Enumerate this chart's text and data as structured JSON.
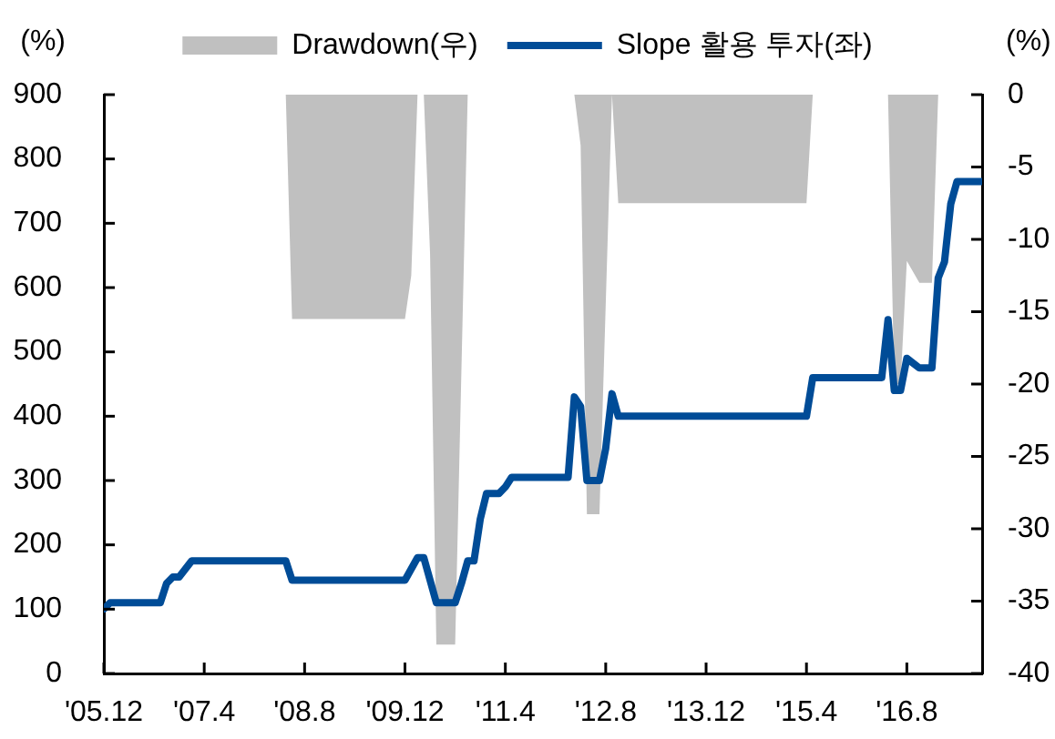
{
  "chart_data": {
    "type": "line",
    "ylabel": "(%)",
    "y2label": "(%)",
    "xlim": [
      "2005-12",
      "2017-08"
    ],
    "xticks": [
      {
        "value": "2005-12",
        "label": "'05.12"
      },
      {
        "value": "2007-04",
        "label": "'07.4"
      },
      {
        "value": "2008-08",
        "label": "'08.8"
      },
      {
        "value": "2009-12",
        "label": "'09.12"
      },
      {
        "value": "2011-04",
        "label": "'11.4"
      },
      {
        "value": "2012-08",
        "label": "'12.8"
      },
      {
        "value": "2013-12",
        "label": "'13.12"
      },
      {
        "value": "2015-04",
        "label": "'15.4"
      },
      {
        "value": "2016-08",
        "label": "'16.8"
      }
    ],
    "ylim": [
      0,
      900
    ],
    "yticks": [
      0,
      100,
      200,
      300,
      400,
      500,
      600,
      700,
      800,
      900
    ],
    "y2lim": [
      -40,
      0
    ],
    "y2ticks": [
      -40,
      -35,
      -30,
      -25,
      -20,
      -15,
      -10,
      -5,
      0
    ],
    "legend": "top",
    "series": [
      {
        "name": "Drawdown(우)",
        "type": "area",
        "axis": "y2",
        "color": "#c0c0c0",
        "x": [
          "2005-12",
          "2008-05",
          "2008-06",
          "2009-12",
          "2010-01",
          "2010-02",
          "2010-03",
          "2010-04",
          "2010-05",
          "2010-08",
          "2010-10",
          "2012-03",
          "2012-04",
          "2012-05",
          "2012-07",
          "2012-09",
          "2012-10",
          "2015-04",
          "2015-05",
          "2016-05",
          "2016-06",
          "2016-07",
          "2016-08",
          "2016-10",
          "2016-12",
          "2017-01",
          "2017-08"
        ],
        "values": [
          0,
          0,
          -15.5,
          -15.5,
          -12.5,
          0,
          0,
          -11,
          -38,
          -38,
          0,
          0,
          -3.5,
          -29,
          -29,
          0,
          -7.5,
          -7.5,
          0,
          0,
          -20,
          -20,
          -11.5,
          -13,
          -13,
          0,
          0
        ]
      },
      {
        "name": "Slope 활용 투자(좌)",
        "type": "line",
        "axis": "y",
        "color": "#004c97",
        "x": [
          "2005-12",
          "2006-01",
          "2006-09",
          "2006-10",
          "2006-11",
          "2006-12",
          "2007-02",
          "2008-05",
          "2008-06",
          "2009-12",
          "2010-02",
          "2010-03",
          "2010-05",
          "2010-08",
          "2010-09",
          "2010-10",
          "2010-11",
          "2010-12",
          "2011-01",
          "2011-03",
          "2011-04",
          "2011-05",
          "2012-02",
          "2012-03",
          "2012-04",
          "2012-05",
          "2012-07",
          "2012-08",
          "2012-09",
          "2012-10",
          "2015-04",
          "2015-05",
          "2016-04",
          "2016-05",
          "2016-06",
          "2016-07",
          "2016-08",
          "2016-10",
          "2016-12",
          "2017-01",
          "2017-02",
          "2017-03",
          "2017-04",
          "2017-08"
        ],
        "values": [
          100,
          110,
          110,
          140,
          150,
          150,
          175,
          175,
          145,
          145,
          180,
          180,
          110,
          110,
          140,
          175,
          175,
          240,
          280,
          280,
          290,
          305,
          305,
          430,
          415,
          300,
          300,
          350,
          435,
          400,
          400,
          460,
          460,
          550,
          440,
          440,
          490,
          475,
          475,
          615,
          640,
          730,
          765,
          765
        ]
      }
    ]
  }
}
